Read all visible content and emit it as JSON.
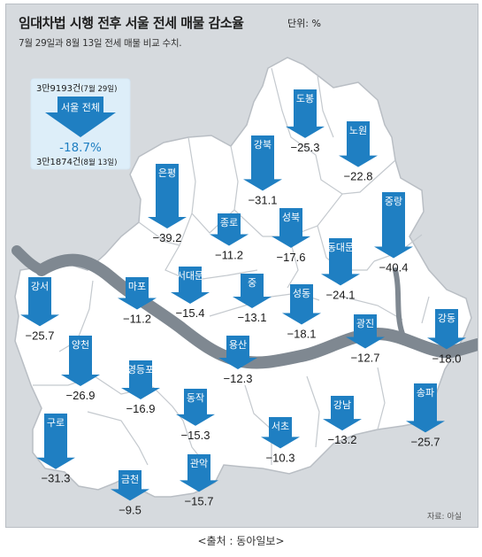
{
  "header": {
    "title": "임대차법 시행 전후 서울 전세 매물 감소율",
    "unit": "단위: %",
    "subtitle": "7월 29일과 8월 13일 전세 매물 비교 수치."
  },
  "summary": {
    "before": "3만9193건",
    "before_date": "(7월 29일)",
    "label": "서울 전체",
    "rate": "-18.7%",
    "after": "3만1874건",
    "after_date": "(8월 13일)"
  },
  "colors": {
    "accent_blue": "#1f7fc2",
    "land": "#ffffff",
    "river": "#7f8891",
    "background": "#d6dade",
    "summary_box": "#ddeef9"
  },
  "districts": [
    {
      "name": "도봉",
      "change": -25.3
    },
    {
      "name": "노원",
      "change": -22.8
    },
    {
      "name": "강북",
      "change": -31.1
    },
    {
      "name": "은평",
      "change": -39.2
    },
    {
      "name": "종로",
      "change": -11.2
    },
    {
      "name": "성북",
      "change": -17.6
    },
    {
      "name": "동대문",
      "change": -24.1
    },
    {
      "name": "중랑",
      "change": -40.4
    },
    {
      "name": "강서",
      "change": -25.7
    },
    {
      "name": "마포",
      "change": -11.2
    },
    {
      "name": "서대문",
      "change": -15.4
    },
    {
      "name": "중",
      "change": -13.1
    },
    {
      "name": "성동",
      "change": -18.1
    },
    {
      "name": "광진",
      "change": -12.7
    },
    {
      "name": "강동",
      "change": -18.0
    },
    {
      "name": "양천",
      "change": -26.9
    },
    {
      "name": "용산",
      "change": -12.3
    },
    {
      "name": "영등포",
      "change": -16.9
    },
    {
      "name": "동작",
      "change": -15.3
    },
    {
      "name": "구로",
      "change": -31.3
    },
    {
      "name": "서초",
      "change": -10.3
    },
    {
      "name": "강남",
      "change": -13.2
    },
    {
      "name": "송파",
      "change": -25.7
    },
    {
      "name": "금천",
      "change": -9.5
    },
    {
      "name": "관악",
      "change": -15.7
    }
  ],
  "source_note": "자료: 아실",
  "caption": "<출처 : 동아일보>"
}
